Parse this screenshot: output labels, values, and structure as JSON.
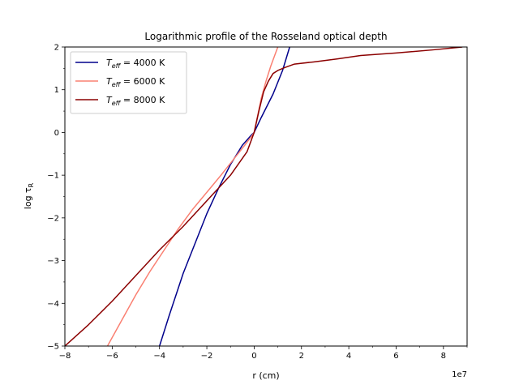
{
  "chart_data": {
    "type": "line",
    "title": "Logarithmic profile of the Rosseland optical depth",
    "xlabel": "r (cm)",
    "ylabel": "log τ",
    "ylabel_subscript": "R",
    "x_offset_label": "1e7",
    "xlim": [
      -8,
      9
    ],
    "ylim": [
      -5,
      2
    ],
    "xticks": [
      "−8",
      "−6",
      "−4",
      "−2",
      "0",
      "2",
      "4",
      "6",
      "8"
    ],
    "yticks": [
      "−5",
      "−4",
      "−3",
      "−2",
      "−1",
      "0",
      "1",
      "2"
    ],
    "legend_position": "upper-left",
    "series": [
      {
        "name": "= 4000 K",
        "name_prefix": "T",
        "name_subscript": "eff",
        "color": "#00008b",
        "x": [
          -4.0,
          -3.6,
          -3.0,
          -2.5,
          -2.0,
          -1.5,
          -1.0,
          -0.5,
          -0.1,
          0.0,
          0.3,
          0.8,
          1.2,
          1.5
        ],
        "y": [
          -5.0,
          -4.3,
          -3.3,
          -2.6,
          -1.9,
          -1.3,
          -0.75,
          -0.3,
          -0.05,
          0.0,
          0.35,
          0.9,
          1.45,
          2.0
        ]
      },
      {
        "name": "= 6000 K",
        "name_prefix": "T",
        "name_subscript": "eff",
        "color": "#fa8072",
        "x": [
          -6.2,
          -5.6,
          -5.0,
          -4.4,
          -3.8,
          -3.2,
          -2.6,
          -2.0,
          -1.4,
          -0.9,
          -0.4,
          -0.1,
          0.0,
          0.15,
          0.3,
          0.5,
          0.7,
          0.9,
          1.0
        ],
        "y": [
          -5.0,
          -4.4,
          -3.8,
          -3.25,
          -2.75,
          -2.25,
          -1.8,
          -1.4,
          -1.0,
          -0.65,
          -0.3,
          -0.08,
          0.0,
          0.4,
          0.8,
          1.2,
          1.55,
          1.85,
          2.0
        ]
      },
      {
        "name": "= 8000 K",
        "name_prefix": "T",
        "name_subscript": "eff",
        "color": "#8b0000",
        "x": [
          -8.0,
          -7.0,
          -6.0,
          -5.0,
          -4.0,
          -3.0,
          -2.0,
          -1.0,
          -0.3,
          0.0,
          0.2,
          0.4,
          0.6,
          0.8,
          1.0,
          1.3,
          1.7,
          2.5,
          3.5,
          4.5,
          6.0,
          7.5,
          8.8
        ],
        "y": [
          -5.0,
          -4.5,
          -3.95,
          -3.35,
          -2.75,
          -2.2,
          -1.6,
          -1.0,
          -0.45,
          0.0,
          0.5,
          0.95,
          1.2,
          1.38,
          1.45,
          1.52,
          1.6,
          1.65,
          1.72,
          1.8,
          1.86,
          1.93,
          2.0
        ]
      }
    ]
  }
}
